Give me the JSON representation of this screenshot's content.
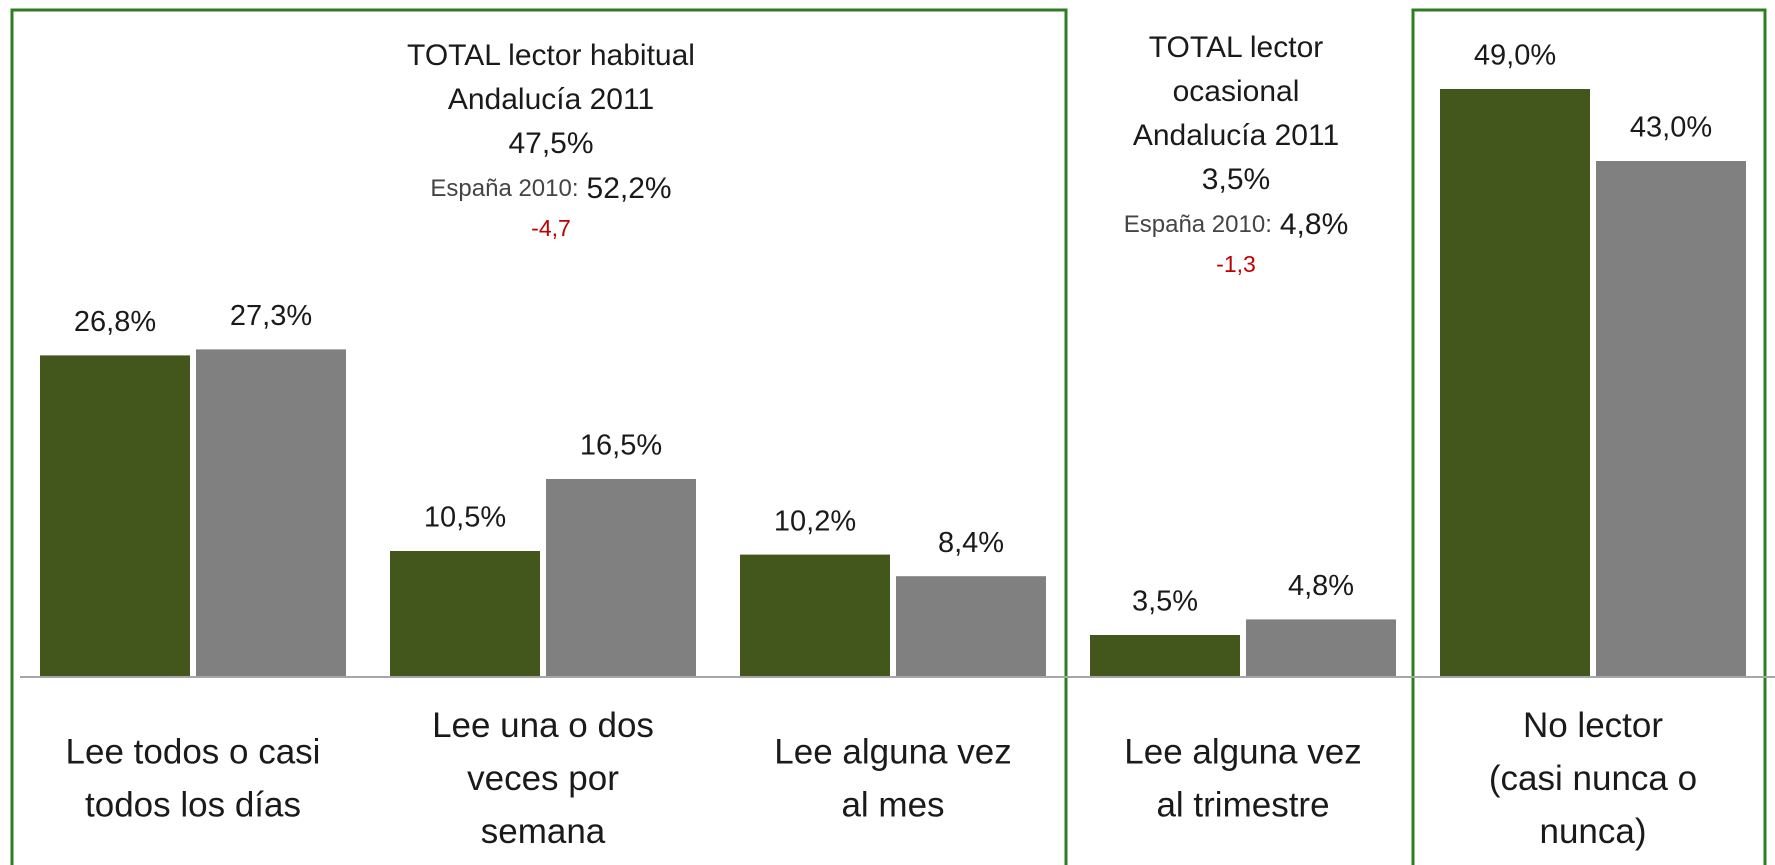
{
  "chart_data": {
    "type": "bar",
    "categories": [
      [
        "Lee todos o casi",
        "todos los días"
      ],
      [
        "Lee una o dos",
        "veces por",
        "semana"
      ],
      [
        "Lee alguna vez",
        "al mes"
      ],
      [
        "Lee alguna vez",
        "al trimestre"
      ],
      [
        "No  lector",
        "(casi nunca o",
        "nunca)"
      ]
    ],
    "series": [
      {
        "color": "#43561b",
        "values": [
          26.8,
          10.5,
          10.2,
          3.5,
          49.0
        ],
        "value_labels": [
          "26,8%",
          "10,5%",
          "10,2%",
          "3,5%",
          "49,0%"
        ]
      },
      {
        "color": "#808080",
        "values": [
          27.3,
          16.5,
          8.4,
          4.8,
          43.0
        ],
        "value_labels": [
          "27,3%",
          "16,5%",
          "8,4%",
          "4,8%",
          "43,0%"
        ]
      }
    ],
    "ylim": [
      0,
      50
    ],
    "annotations": [
      {
        "lines": [
          "TOTAL lector habitual",
          "Andalucía 2011",
          "47,5%"
        ],
        "compare_label": "España 2010:",
        "compare_value": "52,2%",
        "diff": "-4,7"
      },
      {
        "lines": [
          "TOTAL lector",
          "ocasional",
          "Andalucía 2011",
          "3,5%"
        ],
        "compare_label": "España 2010:",
        "compare_value": "4,8%",
        "diff": "-1,3"
      }
    ]
  }
}
